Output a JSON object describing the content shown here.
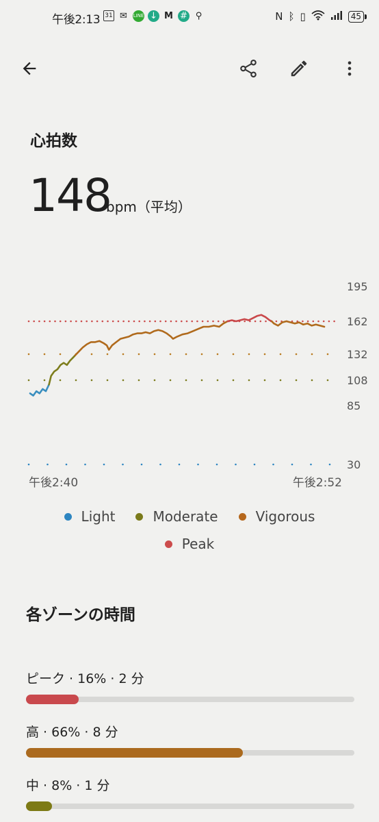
{
  "status_bar": {
    "time": "午後2:13",
    "notification_icons": [
      "calendar-icon",
      "mail-open-icon",
      "line-icon",
      "download-icon",
      "gmail-icon",
      "slack-icon",
      "keyhole-icon"
    ],
    "calendar_day": "31",
    "system_icons": [
      "nfc-icon",
      "bluetooth-icon",
      "vibrate-icon",
      "wifi-icon",
      "signal-icon"
    ],
    "battery": "45"
  },
  "toolbar": {
    "back_icon": "arrow-back-icon",
    "share_icon": "share-icon",
    "edit_icon": "pencil-icon",
    "more_icon": "more-vert-icon"
  },
  "heart_rate": {
    "title": "心拍数",
    "value": "148",
    "unit": "bpm（平均）"
  },
  "chart_data": {
    "type": "line",
    "x_start_label": "午後2:40",
    "x_end_label": "午後2:52",
    "y_ticks": [
      "195",
      "162",
      "132",
      "108",
      "85",
      "30"
    ],
    "ylim": [
      30,
      195
    ],
    "thresholds": [
      {
        "zone": "Peak",
        "value": 162,
        "color": "#cc4c4c"
      },
      {
        "zone": "Vigorous",
        "value": 132,
        "color": "#b97a1f"
      },
      {
        "zone": "Moderate",
        "value": 108,
        "color": "#7a7a1a"
      },
      {
        "zone": "Light",
        "value": 30,
        "color": "#2e86c1"
      }
    ],
    "series": [
      {
        "name": "Light",
        "color": "#3a8fbf",
        "points": [
          [
            0,
            96
          ],
          [
            0.3,
            94
          ],
          [
            0.6,
            98
          ],
          [
            0.9,
            96
          ],
          [
            1.2,
            100
          ],
          [
            1.5,
            98
          ],
          [
            1.8,
            104
          ]
        ]
      },
      {
        "name": "Moderate",
        "color": "#7d7d1c",
        "points": [
          [
            1.8,
            104
          ],
          [
            2.0,
            112
          ],
          [
            2.3,
            116
          ],
          [
            2.6,
            118
          ],
          [
            2.9,
            122
          ],
          [
            3.2,
            124
          ],
          [
            3.5,
            122
          ],
          [
            3.8,
            126
          ],
          [
            4.1,
            129
          ],
          [
            4.3,
            131
          ]
        ]
      },
      {
        "name": "Vigorous",
        "color": "#b06a1c",
        "points": [
          [
            4.3,
            131
          ],
          [
            4.6,
            134
          ],
          [
            5.0,
            138
          ],
          [
            5.4,
            141
          ],
          [
            5.8,
            143
          ],
          [
            6.2,
            143
          ],
          [
            6.6,
            144
          ],
          [
            7.0,
            142
          ],
          [
            7.3,
            140
          ],
          [
            7.5,
            136
          ],
          [
            7.8,
            140
          ],
          [
            8.2,
            143
          ],
          [
            8.6,
            146
          ],
          [
            9.0,
            147
          ],
          [
            9.4,
            148
          ],
          [
            9.8,
            150
          ],
          [
            10.2,
            151
          ],
          [
            10.6,
            151
          ],
          [
            11.0,
            152
          ],
          [
            11.4,
            151
          ],
          [
            11.8,
            153
          ],
          [
            12.2,
            154
          ],
          [
            12.6,
            153
          ],
          [
            13.0,
            151
          ],
          [
            13.4,
            148
          ],
          [
            13.6,
            146
          ],
          [
            14.0,
            148
          ],
          [
            14.5,
            150
          ],
          [
            15.0,
            151
          ],
          [
            15.5,
            153
          ],
          [
            16.0,
            155
          ],
          [
            16.5,
            157
          ],
          [
            17.0,
            157
          ],
          [
            17.5,
            158
          ],
          [
            18.0,
            157
          ],
          [
            18.4,
            160
          ],
          [
            18.8,
            162
          ]
        ]
      },
      {
        "name": "Peak",
        "color": "#c9484a",
        "points": [
          [
            18.8,
            162
          ],
          [
            19.2,
            163
          ],
          [
            19.6,
            162
          ],
          [
            20.0,
            163
          ],
          [
            20.4,
            164
          ],
          [
            20.8,
            163
          ],
          [
            21.2,
            165
          ],
          [
            21.6,
            167
          ],
          [
            22.0,
            168
          ],
          [
            22.4,
            166
          ],
          [
            22.8,
            163
          ],
          [
            23.0,
            162
          ]
        ]
      },
      {
        "name": "Vigorous",
        "color": "#b06a1c",
        "points": [
          [
            23.0,
            162
          ],
          [
            23.2,
            160
          ],
          [
            23.6,
            158
          ],
          [
            24.0,
            161
          ],
          [
            24.4,
            162
          ],
          [
            24.8,
            161
          ],
          [
            25.2,
            160
          ],
          [
            25.6,
            161
          ],
          [
            26.0,
            159
          ],
          [
            26.4,
            160
          ],
          [
            26.8,
            158
          ],
          [
            27.2,
            159
          ],
          [
            27.6,
            158
          ],
          [
            28.0,
            157
          ]
        ]
      }
    ],
    "x_range": [
      0,
      28
    ]
  },
  "legend": [
    {
      "label": "Light",
      "color": "#2e86c1"
    },
    {
      "label": "Moderate",
      "color": "#7a7a1a"
    },
    {
      "label": "Vigorous",
      "color": "#b5671c"
    },
    {
      "label": "Peak",
      "color": "#cc4c4c"
    }
  ],
  "zones": {
    "title": "各ゾーンの時間",
    "items": [
      {
        "label": "ピーク · 16% · 2 分",
        "fraction": 0.16,
        "color": "#c9494d"
      },
      {
        "label": "高 · 66% · 8 分",
        "fraction": 0.66,
        "color": "#ab6a1e"
      },
      {
        "label": "中 · 8% · 1 分",
        "fraction": 0.08,
        "color": "#7d7a15"
      }
    ]
  }
}
